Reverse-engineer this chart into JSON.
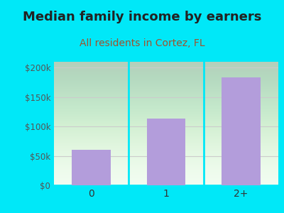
{
  "title": "Median family income by earners",
  "subtitle": "All residents in Cortez, FL",
  "categories": [
    "0",
    "1",
    "2+"
  ],
  "values": [
    60000,
    113000,
    183000
  ],
  "bar_color": "#b39ddb",
  "title_fontsize": 13,
  "subtitle_fontsize": 10,
  "subtitle_color": "#a0522d",
  "title_color": "#222222",
  "bg_color": "#00e8f8",
  "ylim": [
    0,
    210000
  ],
  "yticks": [
    0,
    50000,
    100000,
    150000,
    200000
  ],
  "ytick_labels": [
    "$0",
    "$50k",
    "$100k",
    "$150k",
    "$200k"
  ],
  "grid_color": "#cccccc",
  "tick_color": "#555555",
  "xtick_color": "#333333"
}
